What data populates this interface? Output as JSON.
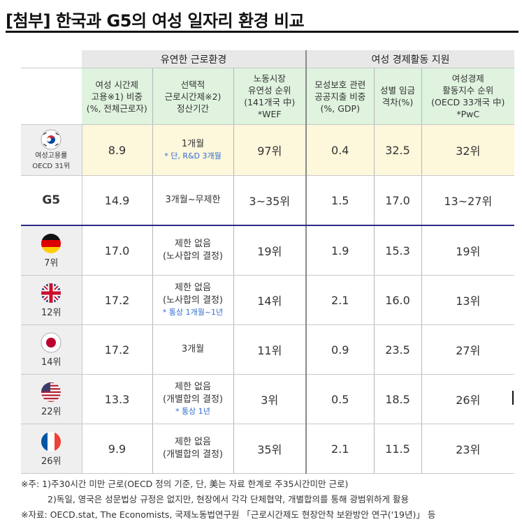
{
  "title": "[첨부] 한국과 G5의 여성 일자리 환경 비교",
  "groups": {
    "flexible": "유연한 근로환경",
    "support": "여성 경제활동 지원"
  },
  "columns": [
    {
      "lines": [
        "여성 시간제",
        "고용※1) 비중",
        "(%, 전체근로자)"
      ]
    },
    {
      "lines": [
        "선택적",
        "근로시간제※2)",
        "정산기간"
      ]
    },
    {
      "lines": [
        "노동시장",
        "유연성 순위",
        "(141개국 中)",
        "*WEF"
      ]
    },
    {
      "lines": [
        "모성보호 관련",
        "공공지출 비중",
        "(%, GDP)"
      ]
    },
    {
      "lines": [
        "성별 임금",
        "격차(%)"
      ]
    },
    {
      "lines": [
        "여성경제",
        "활동지수 순위",
        "(OECD 33개국 中)",
        "*PwC"
      ]
    }
  ],
  "rows": {
    "korea": {
      "label1": "여성고용률",
      "label2": "OECD 31위",
      "c1": "8.9",
      "c2": "1개월",
      "c2_note": "* 단, R&D 3개월",
      "c3": "97위",
      "c4": "0.4",
      "c5": "32.5",
      "c6": "32위"
    },
    "g5": {
      "label": "G5",
      "c1": "14.9",
      "c2": "3개월~무제한",
      "c3": "3~35위",
      "c4": "1.5",
      "c5": "17.0",
      "c6": "13~27위"
    },
    "germany": {
      "rank": "7위",
      "c1": "17.0",
      "c2a": "제한 없음",
      "c2b": "(노사합의 결정)",
      "c3": "19위",
      "c4": "1.9",
      "c5": "15.3",
      "c6": "19위"
    },
    "uk": {
      "rank": "12위",
      "c1": "17.2",
      "c2a": "제한 없음",
      "c2b": "(노사합의 결정)",
      "c2_note": "* 통상 1개월~1년",
      "c3": "14위",
      "c4": "2.1",
      "c5": "16.0",
      "c6": "13위"
    },
    "japan": {
      "rank": "14위",
      "c1": "17.2",
      "c2": "3개월",
      "c3": "11위",
      "c4": "0.9",
      "c5": "23.5",
      "c6": "27위"
    },
    "usa": {
      "rank": "22위",
      "c1": "13.3",
      "c2a": "제한 없음",
      "c2b": "(개별합의 결정)",
      "c2_note": "* 통상 1년",
      "c3": "3위",
      "c4": "0.5",
      "c5": "18.5",
      "c6": "26위"
    },
    "france": {
      "rank": "26위",
      "c1": "9.9",
      "c2a": "제한 없음",
      "c2b": "(개별합의 결정)",
      "c3": "35위",
      "c4": "2.1",
      "c5": "11.5",
      "c6": "23위"
    }
  },
  "notes": [
    "※주: 1)주30시간 미만 근로(OECD 정의 기준, 단, 美는 자료 한계로 주35시간미만 근로)",
    "2)독일, 영국은 성문법상 규정은 없지만, 현장에서 각각 단체협약, 개별합의를 통해 광범위하게 활용",
    "※자료: OECD.stat, The Economists, 국제노동법연구원 「근로시간제도 현장안착 보완방안 연구('19년)」 등"
  ],
  "colors": {
    "header_green": "#dff3df",
    "korea_row": "#fdf7dc",
    "g5_divider": "#2b2a86",
    "note_blue": "#2f6dd0"
  },
  "icons": [
    "korea-flag-icon",
    "germany-flag-icon",
    "uk-flag-icon",
    "japan-flag-icon",
    "usa-flag-icon",
    "france-flag-icon"
  ]
}
